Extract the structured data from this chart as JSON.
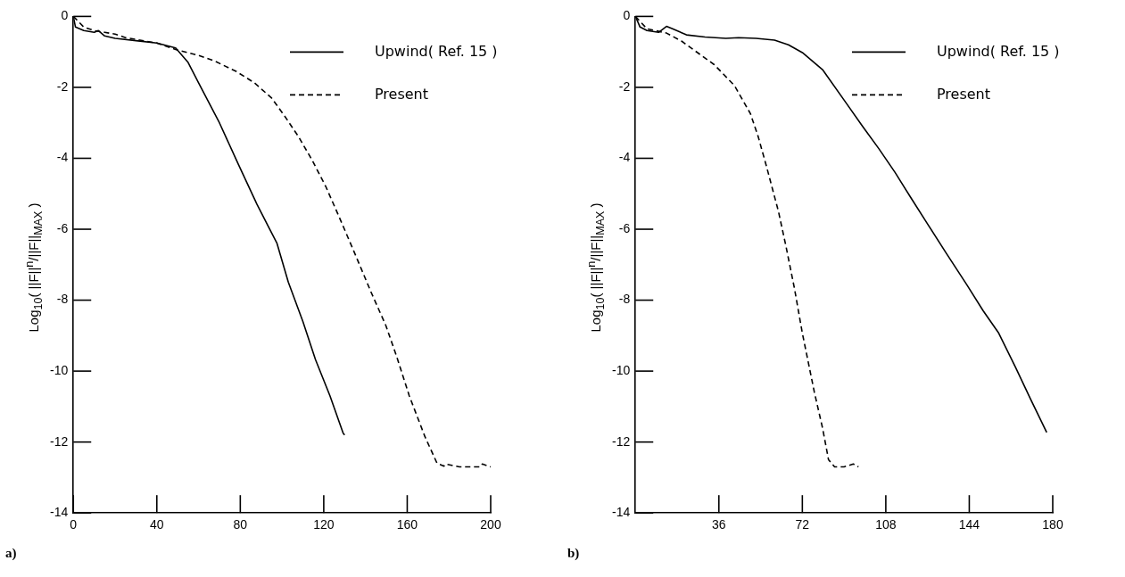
{
  "chart_data": [
    {
      "type": "line",
      "ylabel": "Log$_{10}$( ||F||$^{n}$/||F||$_{MAX}$ )",
      "xlim": [
        0,
        200
      ],
      "xticks": [
        0,
        40,
        80,
        120,
        160,
        200
      ],
      "ylim": [
        -14,
        0
      ],
      "yticks": [
        -14,
        -12,
        -10,
        -8,
        -6,
        -4,
        -2,
        0
      ],
      "grid": false,
      "legend": "top right",
      "annotations": [
        "a)"
      ],
      "series": [
        {
          "name": "Upwind( Ref. 15 )",
          "color": "#000000",
          "line_style": "solid",
          "x": [
            0,
            1,
            5,
            10,
            12,
            15,
            20,
            31,
            40,
            49,
            55,
            60,
            70,
            79,
            88,
            97.6,
            103,
            110,
            116,
            123,
            129.3,
            130
          ],
          "values": [
            0,
            -0.3,
            -0.4,
            -0.45,
            -0.4,
            -0.55,
            -0.62,
            -0.69,
            -0.75,
            -0.89,
            -1.3,
            -1.87,
            -3.0,
            -4.16,
            -5.3,
            -6.4,
            -7.49,
            -8.6,
            -9.67,
            -10.7,
            -11.75,
            -11.8
          ]
        },
        {
          "name": "Present",
          "color": "#000000",
          "line_style": "dashed",
          "x": [
            0,
            5,
            10,
            15,
            20,
            25,
            30,
            40,
            50,
            60,
            67.8,
            78,
            86.7,
            95,
            101.5,
            108,
            114.5,
            121,
            127.5,
            135,
            142.5,
            149.8,
            155,
            161,
            168.5,
            174.3,
            177.6,
            178.5,
            185,
            195,
            196,
            200
          ],
          "values": [
            0,
            -0.3,
            -0.4,
            -0.45,
            -0.5,
            -0.6,
            -0.65,
            -0.75,
            -0.95,
            -1.1,
            -1.26,
            -1.55,
            -1.87,
            -2.3,
            -2.83,
            -3.4,
            -4.06,
            -4.8,
            -5.67,
            -6.7,
            -7.75,
            -8.72,
            -9.6,
            -10.7,
            -11.85,
            -12.6,
            -12.68,
            -12.62,
            -12.7,
            -12.7,
            -12.62,
            -12.7
          ]
        }
      ]
    },
    {
      "type": "line",
      "ylabel": "Log$_{10}$( ||F||$^{n}$/||F||$_{MAX}$ )",
      "xlim": [
        0,
        180
      ],
      "xticks": [
        36,
        72,
        108,
        144,
        180
      ],
      "ylim": [
        -14,
        0
      ],
      "yticks": [
        -14,
        -12,
        -10,
        -8,
        -6,
        -4,
        -2,
        0
      ],
      "grid": false,
      "legend": "top right",
      "annotations": [
        "b)"
      ],
      "series": [
        {
          "name": "Upwind( Ref. 15 )",
          "color": "#000000",
          "line_style": "solid",
          "x": [
            0,
            2,
            5,
            10,
            13.4,
            16,
            22,
            30,
            39,
            44.5,
            52,
            60,
            66,
            72,
            80.7,
            91,
            98,
            104.9,
            112,
            118.7,
            126,
            134,
            142.9,
            150,
            156.7,
            164,
            170.5,
            177.4
          ],
          "values": [
            0,
            -0.3,
            -0.4,
            -0.45,
            -0.28,
            -0.35,
            -0.52,
            -0.58,
            -0.62,
            -0.6,
            -0.62,
            -0.67,
            -0.8,
            -1.02,
            -1.5,
            -2.45,
            -3.1,
            -3.72,
            -4.4,
            -5.1,
            -5.85,
            -6.67,
            -7.56,
            -8.3,
            -8.93,
            -9.9,
            -10.8,
            -11.73
          ]
        },
        {
          "name": "Present",
          "color": "#000000",
          "line_style": "dashed",
          "x": [
            0,
            5,
            10,
            13.4,
            20,
            25.5,
            34,
            42.7,
            49.6,
            53,
            56.5,
            61.7,
            65,
            68.6,
            72,
            77.2,
            80.7,
            83.3,
            85.9,
            90,
            94,
            96.2
          ],
          "values": [
            0,
            -0.35,
            -0.42,
            -0.47,
            -0.7,
            -0.96,
            -1.36,
            -1.95,
            -2.74,
            -3.4,
            -4.22,
            -5.5,
            -6.5,
            -7.67,
            -8.93,
            -10.6,
            -11.6,
            -12.5,
            -12.7,
            -12.7,
            -12.62,
            -12.7
          ]
        }
      ]
    }
  ]
}
